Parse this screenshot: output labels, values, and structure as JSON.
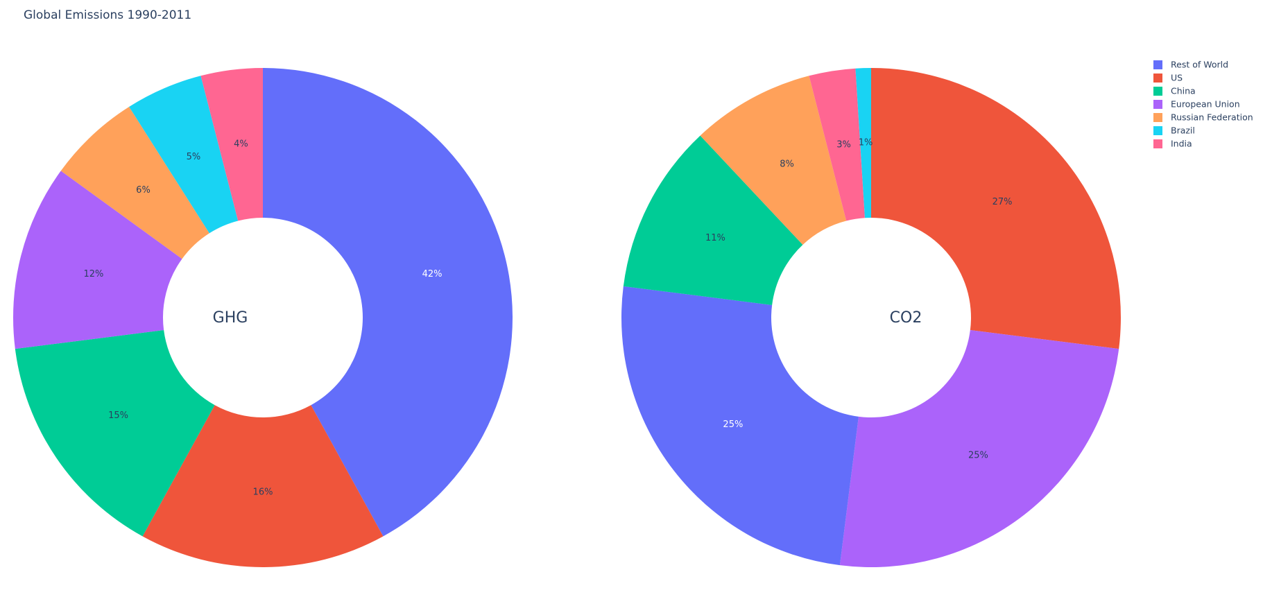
{
  "chart_data": {
    "type": "pie",
    "title": "Global Emissions 1990-2011",
    "legend_placement": "top-right",
    "legend": [
      {
        "name": "Rest of World",
        "color": "#636efa"
      },
      {
        "name": "US",
        "color": "#ef553b"
      },
      {
        "name": "China",
        "color": "#00cc96"
      },
      {
        "name": "European Union",
        "color": "#ab63fa"
      },
      {
        "name": "Russian Federation",
        "color": "#ffa15a"
      },
      {
        "name": "Brazil",
        "color": "#19d3f3"
      },
      {
        "name": "India",
        "color": "#ff6692"
      }
    ],
    "charts": [
      {
        "center_label": "GHG",
        "hole": 0.4,
        "sort": "descending",
        "slices": [
          {
            "name": "Rest of World",
            "value": 42
          },
          {
            "name": "US",
            "value": 16
          },
          {
            "name": "China",
            "value": 15
          },
          {
            "name": "European Union",
            "value": 12
          },
          {
            "name": "Russian Federation",
            "value": 6
          },
          {
            "name": "Brazil",
            "value": 5
          },
          {
            "name": "India",
            "value": 4
          }
        ]
      },
      {
        "center_label": "CO2",
        "hole": 0.4,
        "sort": "descending",
        "slices": [
          {
            "name": "US",
            "value": 27
          },
          {
            "name": "European Union",
            "value": 25
          },
          {
            "name": "Rest of World",
            "value": 25
          },
          {
            "name": "China",
            "value": 11
          },
          {
            "name": "Russian Federation",
            "value": 8
          },
          {
            "name": "India",
            "value": 3
          },
          {
            "name": "Brazil",
            "value": 1
          }
        ]
      }
    ]
  }
}
